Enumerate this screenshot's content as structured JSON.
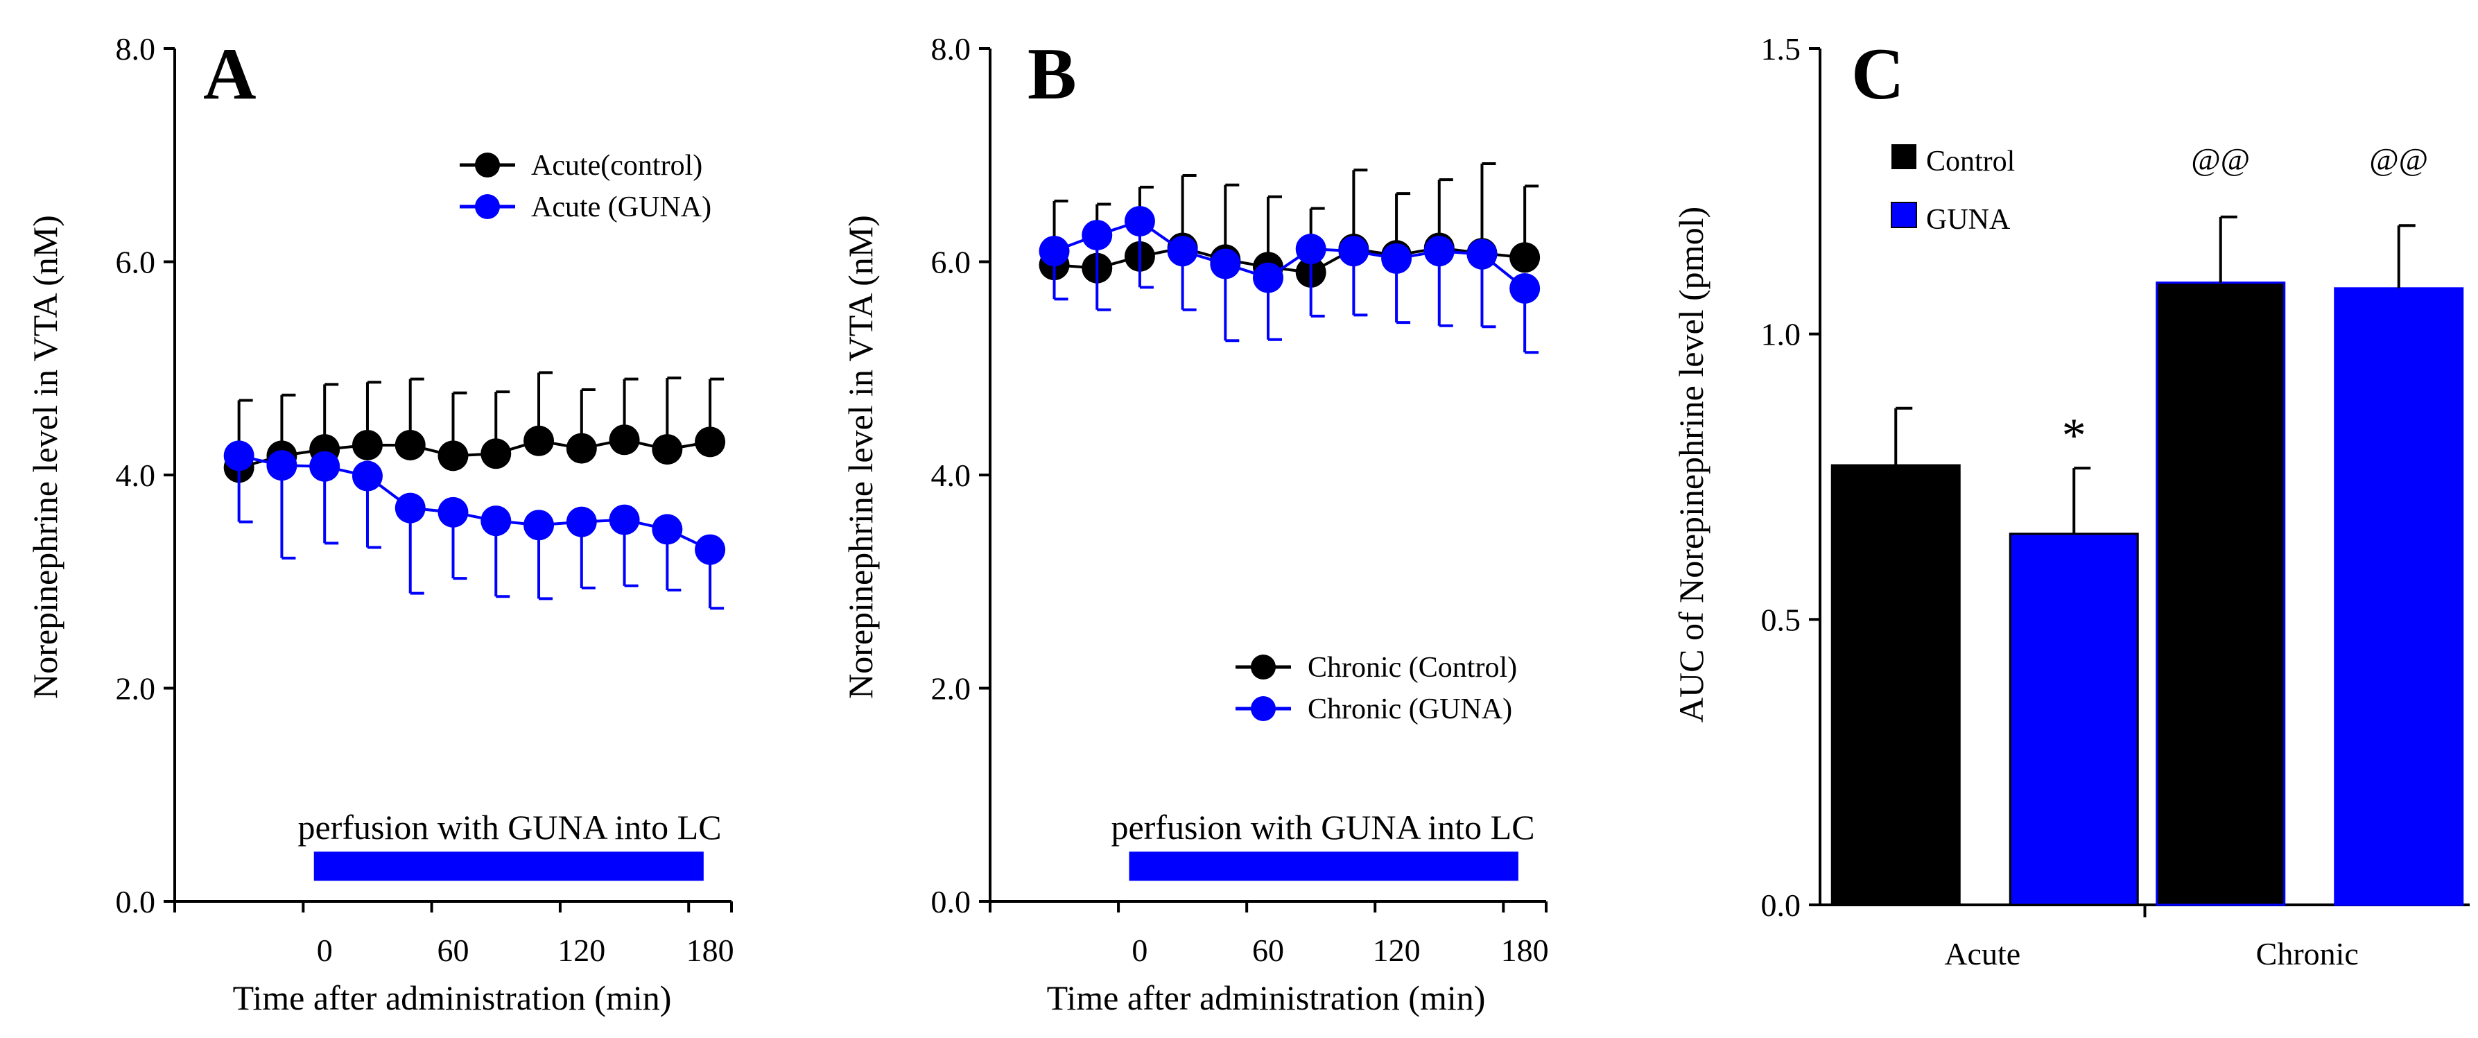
{
  "figure": {
    "background": "#ffffff"
  },
  "chart_data": [
    {
      "type": "line",
      "panel_label": "A",
      "xlabel": "Time after administration (min)",
      "ylabel": "Norepinephrine level in VTA (nM)",
      "xlim": [
        -70,
        190
      ],
      "ylim": [
        0,
        8
      ],
      "x_ticks": [
        {
          "value": 0,
          "label": "0"
        },
        {
          "value": 60,
          "label": "60"
        },
        {
          "value": 120,
          "label": "120"
        },
        {
          "value": 180,
          "label": "180"
        }
      ],
      "y_ticks": [
        {
          "value": 0,
          "label": "0.0"
        },
        {
          "value": 2,
          "label": "2.0"
        },
        {
          "value": 4,
          "label": "4.0"
        },
        {
          "value": 6,
          "label": "6.0"
        },
        {
          "value": 8,
          "label": "8.0"
        }
      ],
      "legend_position": "top-right",
      "series": [
        {
          "name": "Acute(control)",
          "color": "#000000",
          "x": [
            -40,
            -20,
            0,
            20,
            40,
            60,
            80,
            100,
            120,
            140,
            160,
            180
          ],
          "y": [
            4.07,
            4.18,
            4.24,
            4.28,
            4.28,
            4.18,
            4.2,
            4.32,
            4.25,
            4.33,
            4.24,
            4.31
          ],
          "error": [
            0.63,
            0.57,
            0.61,
            0.59,
            0.62,
            0.59,
            0.58,
            0.64,
            0.55,
            0.57,
            0.67,
            0.59
          ]
        },
        {
          "name": "Acute (GUNA)",
          "color": "#0000ff",
          "x": [
            -40,
            -20,
            0,
            20,
            40,
            60,
            80,
            100,
            120,
            140,
            160,
            180
          ],
          "y": [
            4.18,
            4.09,
            4.08,
            3.99,
            3.69,
            3.65,
            3.57,
            3.53,
            3.56,
            3.58,
            3.49,
            3.3
          ],
          "error": [
            0.62,
            0.87,
            0.72,
            0.67,
            0.8,
            0.62,
            0.71,
            0.69,
            0.62,
            0.62,
            0.57,
            0.55
          ]
        }
      ],
      "annotation": {
        "text": "perfusion with GUNA into LC",
        "bar_x": [
          -5,
          177
        ],
        "bar_y": 0.33,
        "color": "#0000ff"
      }
    },
    {
      "type": "line",
      "panel_label": "B",
      "xlabel": "Time after administration (min)",
      "ylabel": "Norepinephrine level in VTA (nM)",
      "xlim": [
        -70,
        190
      ],
      "ylim": [
        0,
        8
      ],
      "x_ticks": [
        {
          "value": 0,
          "label": "0"
        },
        {
          "value": 60,
          "label": "60"
        },
        {
          "value": 120,
          "label": "120"
        },
        {
          "value": 180,
          "label": "180"
        }
      ],
      "y_ticks": [
        {
          "value": 0,
          "label": "0.0"
        },
        {
          "value": 2,
          "label": "2.0"
        },
        {
          "value": 4,
          "label": "4.0"
        },
        {
          "value": 6,
          "label": "6.0"
        },
        {
          "value": 8,
          "label": "8.0"
        }
      ],
      "legend_position": "bottom-right",
      "series": [
        {
          "name": "Chronic (Control)",
          "color": "#000000",
          "x": [
            -40,
            -20,
            0,
            20,
            40,
            60,
            80,
            100,
            120,
            140,
            160,
            180
          ],
          "y": [
            5.97,
            5.94,
            6.05,
            6.13,
            6.02,
            5.95,
            5.9,
            6.12,
            6.06,
            6.13,
            6.08,
            6.04
          ],
          "error": [
            0.6,
            0.6,
            0.65,
            0.68,
            0.7,
            0.66,
            0.6,
            0.74,
            0.58,
            0.64,
            0.84,
            0.67
          ]
        },
        {
          "name": "Chronic (GUNA)",
          "color": "#0000ff",
          "x": [
            -40,
            -20,
            0,
            20,
            40,
            60,
            80,
            100,
            120,
            140,
            160,
            180
          ],
          "y": [
            6.1,
            6.25,
            6.38,
            6.1,
            5.98,
            5.85,
            6.12,
            6.1,
            6.03,
            6.1,
            6.07,
            5.75
          ],
          "error": [
            0.45,
            0.7,
            0.62,
            0.55,
            0.72,
            0.58,
            0.63,
            0.6,
            0.6,
            0.7,
            0.68,
            0.6
          ]
        }
      ],
      "annotation": {
        "text": "perfusion with GUNA into LC",
        "bar_x": [
          -5,
          177
        ],
        "bar_y": 0.33,
        "color": "#0000ff"
      }
    },
    {
      "type": "bar",
      "panel_label": "C",
      "xlabel": "",
      "ylabel": "AUC of Norepinephrine level (pmol)",
      "categories": [
        "Acute",
        "Chronic"
      ],
      "ylim": [
        0,
        1.5
      ],
      "y_ticks": [
        {
          "value": 0,
          "label": "0.0"
        },
        {
          "value": 0.5,
          "label": "0.5"
        },
        {
          "value": 1.0,
          "label": "1.0"
        },
        {
          "value": 1.5,
          "label": "1.5"
        }
      ],
      "legend_position": "top-left",
      "series": [
        {
          "name": "Control",
          "color": "#000000",
          "values": [
            0.77,
            1.09
          ],
          "error": [
            0.1,
            0.115
          ]
        },
        {
          "name": "GUNA",
          "color": "#0000ff",
          "values": [
            0.65,
            1.08
          ],
          "error": [
            0.115,
            0.11
          ]
        }
      ],
      "significance": [
        {
          "text": "*",
          "category": 0,
          "series": 1
        },
        {
          "text": "@@",
          "category": 1,
          "series": 0
        },
        {
          "text": "@@",
          "category": 1,
          "series": 1
        }
      ]
    }
  ]
}
